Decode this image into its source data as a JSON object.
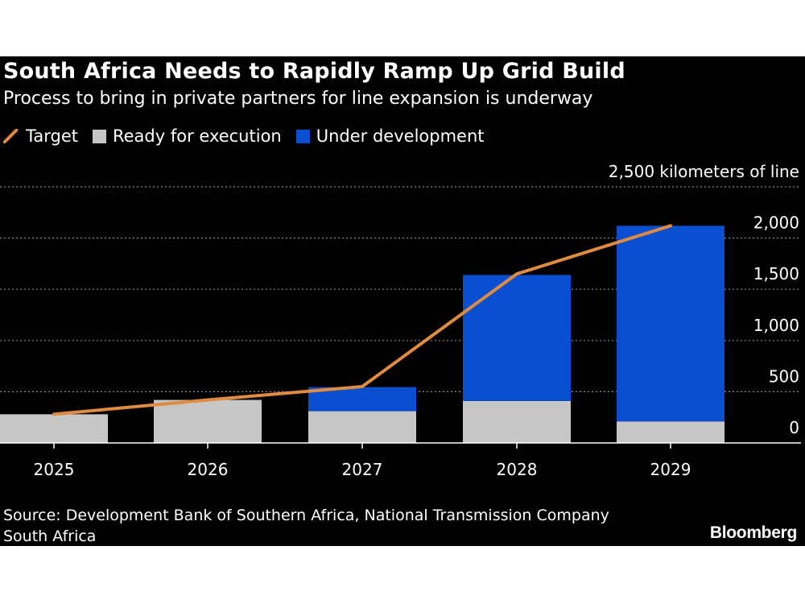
{
  "header": {
    "title": "South Africa Needs to Rapidly Ramp Up Grid Build",
    "subtitle": "Process to bring in private partners for line expansion is underway"
  },
  "legend": {
    "target": "Target",
    "ready": "Ready for execution",
    "under_development": "Under development"
  },
  "colors": {
    "background": "#000000",
    "ready": "#c7c7c7",
    "under_development": "#0a4fd1",
    "target": "#e08b3e",
    "gridline": "#8a8a8a"
  },
  "chart_data": {
    "type": "bar",
    "stacked": true,
    "title": "South Africa Needs to Rapidly Ramp Up Grid Build",
    "subtitle": "Process to bring in private partners for line expansion is underway",
    "unit_label": "2,500 kilometers of line",
    "categories": [
      "2025",
      "2026",
      "2027",
      "2028",
      "2029"
    ],
    "series": [
      {
        "name": "Ready for execution",
        "kind": "bar",
        "values": [
          280,
          420,
          310,
          410,
          210
        ]
      },
      {
        "name": "Under development",
        "kind": "bar",
        "values": [
          0,
          0,
          235,
          1230,
          1910
        ]
      },
      {
        "name": "Target",
        "kind": "line",
        "values": [
          280,
          420,
          550,
          1650,
          2120
        ]
      }
    ],
    "y_ticks": [
      0,
      500,
      1000,
      1500,
      2000,
      2500
    ],
    "y_tick_labels": [
      "0",
      "500",
      "1,000",
      "1,500",
      "2,000",
      "2,500 kilometers of line"
    ],
    "ylim": [
      0,
      2500
    ],
    "grid": true,
    "y_axis_position": "right",
    "legend_position": "top-left"
  },
  "footer": {
    "source": "Source: Development Bank of Southern Africa, National Transmission Company South Africa",
    "brand": "Bloomberg"
  }
}
